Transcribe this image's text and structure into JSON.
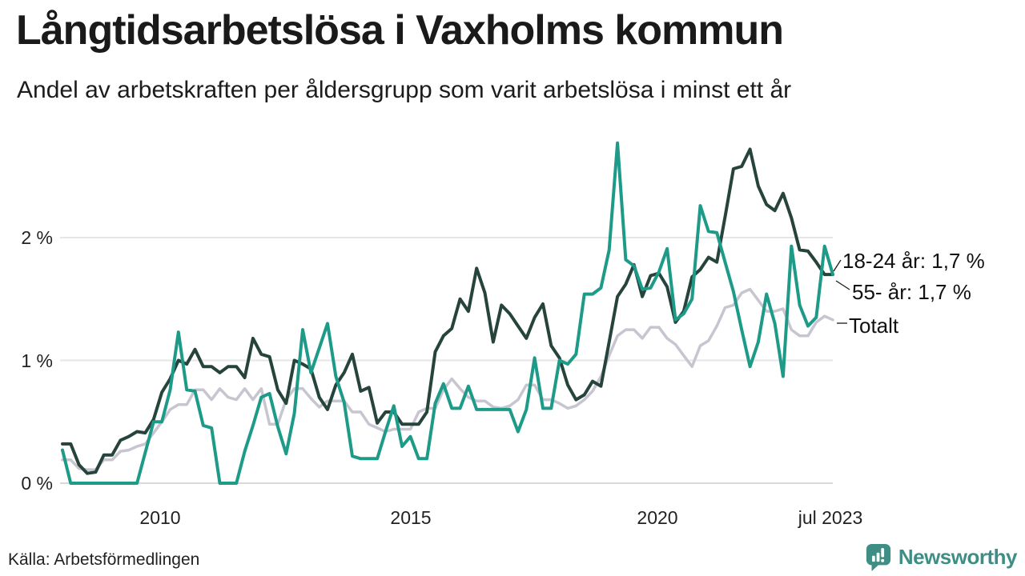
{
  "header": {
    "title": "Långtidsarbetslösa i Vaxholms kommun",
    "subtitle": "Andel av arbetskraften per åldersgrupp som varit arbetslösa i minst ett år"
  },
  "footer": {
    "source": "Källa: Arbetsförmedlingen",
    "brand_name": "Newsworthy",
    "brand_color": "#3f8e85",
    "logo_icon": "bar-chart-speech-bubble"
  },
  "chart_data": {
    "type": "line",
    "title": "Långtidsarbetslösa i Vaxholms kommun",
    "subtitle": "Andel av arbetskraften per åldersgrupp som varit arbetslösa i minst ett år",
    "unit": "%",
    "x_start": "2008-01",
    "x_end": "2023-07",
    "x_step_months": 2,
    "ylim": [
      0,
      2.9
    ],
    "grid": "horizontal",
    "legend_position": "right-of-line-end",
    "x_ticks": [
      {
        "label": "2010",
        "year": 2010.0
      },
      {
        "label": "2015",
        "year": 2015.0
      },
      {
        "label": "2020",
        "year": 2020.0
      },
      {
        "label": "jul 2023",
        "year": 2023.5
      }
    ],
    "y_ticks": [
      {
        "label": "0 %",
        "value": 0
      },
      {
        "label": "1 %",
        "value": 1
      },
      {
        "label": "2 %",
        "value": 2
      }
    ],
    "series": [
      {
        "name": "Totalt",
        "color": "#c7c5d0",
        "end_label": "Totalt",
        "end_value": 1.33,
        "values": [
          0.19,
          0.19,
          0.12,
          0.11,
          0.11,
          0.19,
          0.19,
          0.26,
          0.27,
          0.3,
          0.32,
          0.41,
          0.5,
          0.6,
          0.64,
          0.64,
          0.76,
          0.76,
          0.68,
          0.77,
          0.7,
          0.68,
          0.77,
          0.68,
          0.77,
          0.48,
          0.48,
          0.68,
          0.77,
          0.77,
          0.69,
          0.62,
          0.67,
          0.67,
          0.67,
          0.58,
          0.58,
          0.48,
          0.45,
          0.42,
          0.44,
          0.44,
          0.44,
          0.58,
          0.61,
          0.61,
          0.76,
          0.85,
          0.77,
          0.7,
          0.67,
          0.67,
          0.62,
          0.61,
          0.63,
          0.68,
          0.8,
          0.8,
          0.68,
          0.68,
          0.65,
          0.61,
          0.63,
          0.68,
          0.75,
          0.87,
          1.04,
          1.2,
          1.25,
          1.25,
          1.18,
          1.27,
          1.27,
          1.18,
          1.13,
          1.04,
          0.95,
          1.12,
          1.16,
          1.28,
          1.43,
          1.45,
          1.55,
          1.58,
          1.49,
          1.4,
          1.4,
          1.42,
          1.25,
          1.2,
          1.2,
          1.31,
          1.36,
          1.33
        ]
      },
      {
        "name": "55- år",
        "color": "#26443c",
        "end_label": "55- år: 1,7 %",
        "end_value": 1.7,
        "values": [
          0.32,
          0.32,
          0.15,
          0.08,
          0.09,
          0.23,
          0.23,
          0.35,
          0.38,
          0.42,
          0.41,
          0.52,
          0.74,
          0.85,
          1.0,
          0.97,
          1.09,
          0.95,
          0.95,
          0.9,
          0.95,
          0.95,
          0.86,
          1.18,
          1.05,
          1.03,
          0.76,
          0.65,
          1.0,
          0.97,
          0.93,
          0.7,
          0.6,
          0.8,
          0.9,
          1.05,
          0.75,
          0.78,
          0.49,
          0.58,
          0.58,
          0.48,
          0.48,
          0.48,
          0.58,
          1.07,
          1.2,
          1.26,
          1.5,
          1.4,
          1.75,
          1.55,
          1.15,
          1.45,
          1.38,
          1.28,
          1.18,
          1.35,
          1.46,
          1.12,
          1.02,
          0.8,
          0.68,
          0.72,
          0.83,
          0.79,
          1.15,
          1.52,
          1.62,
          1.78,
          1.52,
          1.69,
          1.71,
          1.6,
          1.31,
          1.4,
          1.68,
          1.74,
          1.84,
          1.8,
          2.17,
          2.56,
          2.58,
          2.72,
          2.42,
          2.27,
          2.22,
          2.36,
          2.16,
          1.9,
          1.89,
          1.8,
          1.7,
          1.7
        ]
      },
      {
        "name": "18-24 år",
        "color": "#1e9a88",
        "end_label": "18-24 år: 1,7 %",
        "end_value": 1.7,
        "values": [
          0.27,
          0.0,
          0.0,
          0.0,
          0.0,
          0.0,
          0.0,
          0.0,
          0.0,
          0.0,
          0.25,
          0.5,
          0.5,
          0.76,
          1.23,
          0.76,
          0.75,
          0.47,
          0.45,
          0.0,
          0.0,
          0.0,
          0.26,
          0.47,
          0.7,
          0.73,
          0.46,
          0.24,
          0.57,
          1.25,
          0.9,
          1.1,
          1.3,
          0.87,
          0.66,
          0.22,
          0.2,
          0.2,
          0.2,
          0.42,
          0.63,
          0.3,
          0.38,
          0.2,
          0.2,
          0.65,
          0.81,
          0.61,
          0.61,
          0.79,
          0.6,
          0.6,
          0.6,
          0.6,
          0.6,
          0.42,
          0.6,
          1.02,
          0.61,
          0.61,
          1.0,
          0.97,
          1.05,
          1.54,
          1.54,
          1.59,
          1.9,
          2.77,
          1.82,
          1.77,
          1.58,
          1.59,
          1.72,
          1.91,
          1.33,
          1.38,
          1.5,
          2.26,
          2.05,
          2.04,
          1.8,
          1.56,
          1.25,
          0.95,
          1.15,
          1.54,
          1.3,
          0.87,
          1.93,
          1.45,
          1.28,
          1.35,
          1.93,
          1.7
        ]
      }
    ]
  }
}
